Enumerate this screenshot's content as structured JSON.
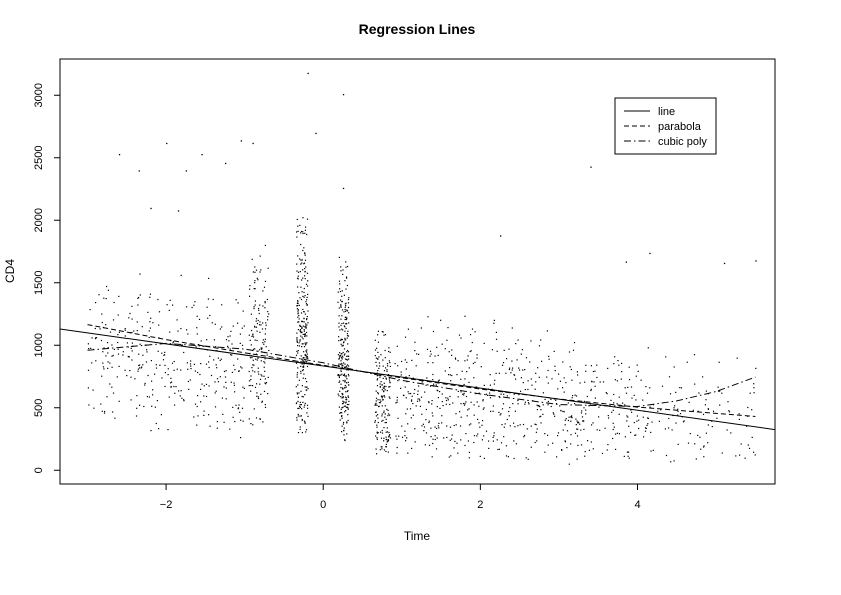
{
  "chart_data": {
    "type": "scatter",
    "title": "Regression Lines",
    "xlabel": "Time",
    "ylabel": "CD4",
    "xlim": [
      -3.35,
      5.75
    ],
    "ylim": [
      -110,
      3290
    ],
    "x_ticks": [
      -2,
      0,
      2,
      4
    ],
    "x_tick_labels": [
      "−2",
      "0",
      "2",
      "4"
    ],
    "y_ticks": [
      0,
      500,
      1000,
      1500,
      2000,
      2500,
      3000
    ],
    "y_tick_labels": [
      "0",
      "500",
      "1000",
      "1500",
      "2000",
      "2500",
      "3000"
    ],
    "grid": false,
    "legend_position": "top-right",
    "legend": [
      {
        "label": "line",
        "style": "solid"
      },
      {
        "label": "parabola",
        "style": "dashed"
      },
      {
        "label": "cubic poly",
        "style": "dashdot"
      }
    ],
    "series": [
      {
        "name": "line",
        "style": "solid",
        "x": [
          -3.35,
          5.75
        ],
        "y": [
          1130,
          325
        ]
      },
      {
        "name": "parabola",
        "style": "dashed",
        "x": [
          -3.0,
          -2.0,
          -1.0,
          0.0,
          1.0,
          2.0,
          3.0,
          4.0,
          5.5
        ],
        "y": [
          1165,
          1045,
          940,
          840,
          740,
          650,
          570,
          505,
          430
        ]
      },
      {
        "name": "cubic poly",
        "style": "dashdot",
        "x": [
          -3.0,
          -2.0,
          -1.0,
          0.0,
          1.0,
          2.0,
          3.0,
          4.0,
          4.5,
          5.0,
          5.5
        ],
        "y": [
          960,
          1015,
          970,
          860,
          720,
          610,
          525,
          510,
          555,
          630,
          745
        ]
      }
    ],
    "scatter_clusters": [
      {
        "x": [
          -3.0,
          -2.2
        ],
        "y": [
          380,
          1750
        ],
        "n": 140
      },
      {
        "x": [
          -2.2,
          -1.4
        ],
        "y": [
          300,
          1600
        ],
        "n": 130
      },
      {
        "x": [
          -1.4,
          -1.0
        ],
        "y": [
          250,
          1500
        ],
        "n": 80
      },
      {
        "x": [
          -0.95,
          -0.7
        ],
        "y": [
          330,
          1900
        ],
        "n": 150
      },
      {
        "x": [
          -0.35,
          -0.2
        ],
        "y": [
          280,
          2200
        ],
        "n": 260
      },
      {
        "x": [
          0.18,
          0.32
        ],
        "y": [
          200,
          1750
        ],
        "n": 240
      },
      {
        "x": [
          0.65,
          0.85
        ],
        "y": [
          100,
          1200
        ],
        "n": 170
      },
      {
        "x": [
          0.9,
          1.6
        ],
        "y": [
          80,
          1300
        ],
        "n": 160
      },
      {
        "x": [
          1.6,
          2.4
        ],
        "y": [
          40,
          1350
        ],
        "n": 170
      },
      {
        "x": [
          2.4,
          3.2
        ],
        "y": [
          30,
          1200
        ],
        "n": 150
      },
      {
        "x": [
          3.2,
          4.0
        ],
        "y": [
          30,
          1100
        ],
        "n": 130
      },
      {
        "x": [
          4.0,
          5.5
        ],
        "y": [
          20,
          1050
        ],
        "n": 120
      }
    ],
    "scatter_outliers": [
      {
        "x": -0.2,
        "y": 3180
      },
      {
        "x": 0.25,
        "y": 3010
      },
      {
        "x": -0.1,
        "y": 2700
      },
      {
        "x": -0.9,
        "y": 2620
      },
      {
        "x": -1.05,
        "y": 2640
      },
      {
        "x": -2.0,
        "y": 2620
      },
      {
        "x": -2.6,
        "y": 2530
      },
      {
        "x": -1.55,
        "y": 2530
      },
      {
        "x": -2.35,
        "y": 2400
      },
      {
        "x": -1.75,
        "y": 2400
      },
      {
        "x": -1.25,
        "y": 2460
      },
      {
        "x": 3.4,
        "y": 2430
      },
      {
        "x": 0.25,
        "y": 2260
      },
      {
        "x": -2.2,
        "y": 2100
      },
      {
        "x": -1.85,
        "y": 2080
      },
      {
        "x": 2.25,
        "y": 1880
      },
      {
        "x": 4.15,
        "y": 1740
      },
      {
        "x": 5.5,
        "y": 1680
      },
      {
        "x": 3.85,
        "y": 1670
      },
      {
        "x": 5.1,
        "y": 1660
      }
    ]
  }
}
